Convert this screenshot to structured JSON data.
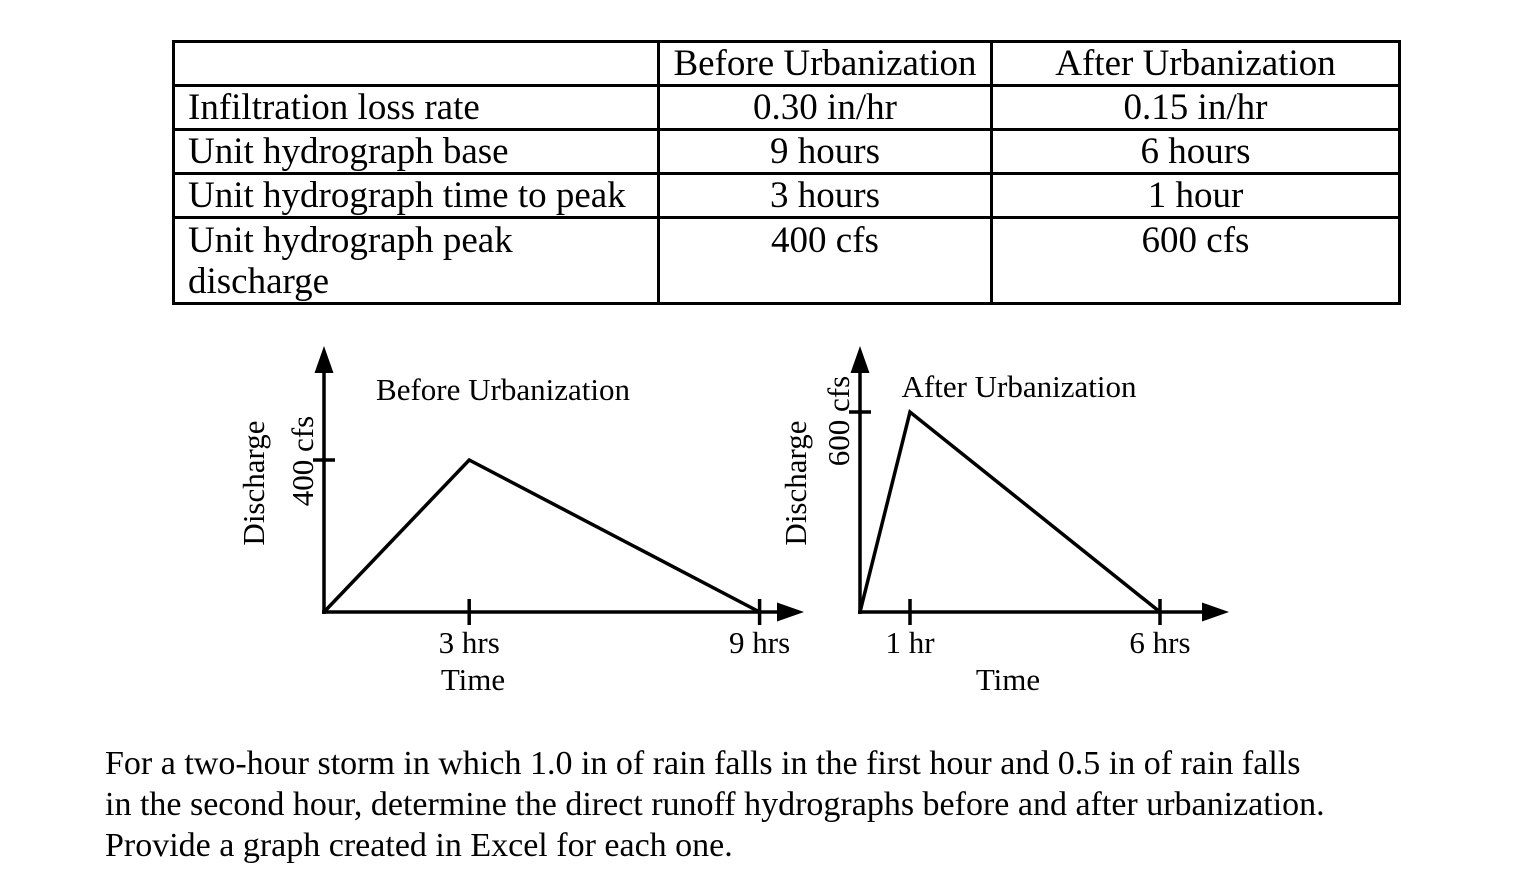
{
  "colors": {
    "ink": "#000000",
    "background": "#ffffff"
  },
  "table": {
    "header": {
      "corner": "",
      "before": "Before Urbanization",
      "after": "After Urbanization"
    },
    "rows": [
      {
        "label": "Infiltration loss rate",
        "before": "0.30 in/hr",
        "after": "0.15 in/hr"
      },
      {
        "label": "Unit hydrograph base",
        "before": "9 hours",
        "after": "6 hours"
      },
      {
        "label": "Unit hydrograph time to peak",
        "before": "3 hours",
        "after": "1 hour"
      },
      {
        "label": "Unit hydrograph peak discharge",
        "before": "400 cfs",
        "after": "600 cfs"
      }
    ]
  },
  "chart_data": [
    {
      "type": "line",
      "title": "Before Urbanization",
      "xlabel": "Time",
      "ylabel": "Discharge",
      "y_tick": {
        "value": 400,
        "label": "400 cfs"
      },
      "x_ticks": [
        {
          "value": 3,
          "label": "3 hrs"
        },
        {
          "value": 9,
          "label": "9 hrs"
        }
      ],
      "points": [
        [
          0,
          0
        ],
        [
          3,
          400
        ],
        [
          9,
          0
        ]
      ],
      "xlim": [
        0,
        10
      ],
      "ylim": [
        0,
        560
      ],
      "grid": false,
      "legend": "none"
    },
    {
      "type": "line",
      "title": "After Urbanization",
      "xlabel": "Time",
      "ylabel": "Discharge",
      "y_tick": {
        "value": 600,
        "label": "600 cfs"
      },
      "x_ticks": [
        {
          "value": 1,
          "label": "1 hr"
        },
        {
          "value": 6,
          "label": "6 hrs"
        }
      ],
      "points": [
        [
          0,
          0
        ],
        [
          1,
          600
        ],
        [
          6,
          0
        ]
      ],
      "xlim": [
        0,
        7.4
      ],
      "ylim": [
        0,
        800
      ],
      "grid": false,
      "legend": "none"
    }
  ],
  "problem_text": {
    "lines": [
      "For a two-hour storm in which 1.0 in of rain falls in the first hour and 0.5 in of rain falls",
      "in the second hour, determine the direct runoff hydrographs before and after urbanization.",
      "Provide a graph created in Excel for each one."
    ]
  }
}
